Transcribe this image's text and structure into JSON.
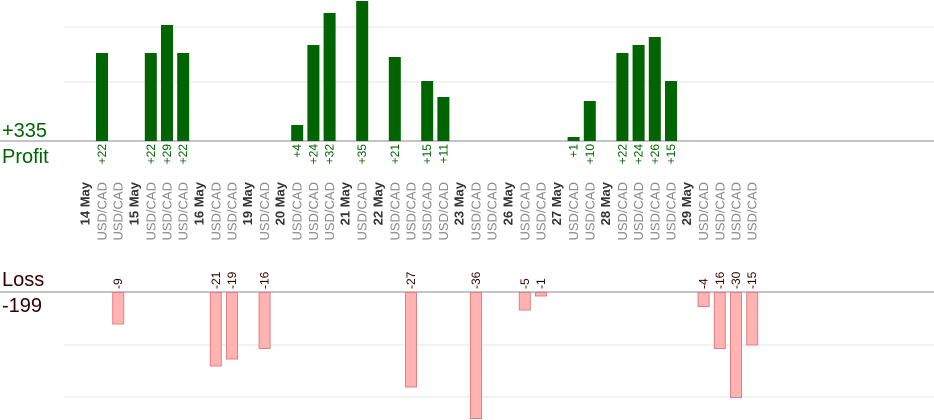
{
  "summary": {
    "profit_total": "+335",
    "profit_label": "Profit",
    "loss_label": "Loss",
    "loss_total": "-199"
  },
  "colors": {
    "profit_bar": "#006400",
    "profit_text": "#006400",
    "loss_bar_fill": "#ffb3b3",
    "loss_bar_stroke": "#e08080",
    "loss_label_text": "#330000",
    "grid": "#e6e6e6",
    "baseline": "#888888",
    "date_text": "#333333",
    "pair_text": "#888888"
  },
  "chart_data": {
    "type": "bar",
    "title": "",
    "xlabel": "",
    "ylabel": "",
    "grid": true,
    "days": [
      {
        "date": "14 May",
        "trades": [
          {
            "pair": "USD/CAD",
            "value": 22
          },
          {
            "pair": "USD/CAD",
            "value": -9
          }
        ]
      },
      {
        "date": "15 May",
        "trades": [
          {
            "pair": "USD/CAD",
            "value": 22
          },
          {
            "pair": "USD/CAD",
            "value": 29
          },
          {
            "pair": "USD/CAD",
            "value": 22
          }
        ]
      },
      {
        "date": "16 May",
        "trades": [
          {
            "pair": "USD/CAD",
            "value": -21
          },
          {
            "pair": "USD/CAD",
            "value": -19
          }
        ]
      },
      {
        "date": "19 May",
        "trades": [
          {
            "pair": "USD/CAD",
            "value": -16
          }
        ]
      },
      {
        "date": "20 May",
        "trades": [
          {
            "pair": "USD/CAD",
            "value": 4
          },
          {
            "pair": "USD/CAD",
            "value": 24
          },
          {
            "pair": "USD/CAD",
            "value": 32
          }
        ]
      },
      {
        "date": "21 May",
        "trades": [
          {
            "pair": "USD/CAD",
            "value": 35
          }
        ]
      },
      {
        "date": "22 May",
        "trades": [
          {
            "pair": "USD/CAD",
            "value": 21
          },
          {
            "pair": "USD/CAD",
            "value": -27
          },
          {
            "pair": "USD/CAD",
            "value": 15
          },
          {
            "pair": "USD/CAD",
            "value": 11
          }
        ]
      },
      {
        "date": "23 May",
        "trades": [
          {
            "pair": "USD/CAD",
            "value": -36
          },
          {
            "pair": "USD/CAD",
            "value": null
          }
        ]
      },
      {
        "date": "26 May",
        "trades": [
          {
            "pair": "USD/CAD",
            "value": -5
          },
          {
            "pair": "USD/CAD",
            "value": -1
          }
        ]
      },
      {
        "date": "27 May",
        "trades": [
          {
            "pair": "USD/CAD",
            "value": 1
          },
          {
            "pair": "USD/CAD",
            "value": 10
          }
        ]
      },
      {
        "date": "28 May",
        "trades": [
          {
            "pair": "USD/CAD",
            "value": 22
          },
          {
            "pair": "USD/CAD",
            "value": 24
          },
          {
            "pair": "USD/CAD",
            "value": 26
          },
          {
            "pair": "USD/CAD",
            "value": 15
          }
        ]
      },
      {
        "date": "29 May",
        "trades": [
          {
            "pair": "USD/CAD",
            "value": -4
          },
          {
            "pair": "USD/CAD",
            "value": -16
          },
          {
            "pair": "USD/CAD",
            "value": -30
          },
          {
            "pair": "USD/CAD",
            "value": -15
          }
        ]
      }
    ]
  }
}
